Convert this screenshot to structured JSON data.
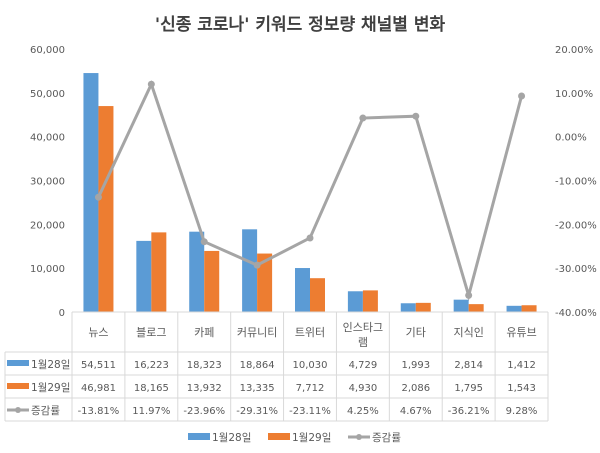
{
  "chart_data": {
    "type": "bar",
    "title": "'신종 코로나' 키워드 정보량 채널별 변화",
    "categories": [
      "뉴스",
      "블로그",
      "카페",
      "커뮤니티",
      "트위터",
      "인스타그램",
      "기타",
      "지식인",
      "유튜브"
    ],
    "series": [
      {
        "name": "1월28일",
        "type": "bar",
        "color": "#5B9BD5",
        "values": [
          54511,
          16223,
          18323,
          18864,
          10030,
          4729,
          1993,
          2814,
          1412
        ],
        "labels": [
          "54,511",
          "16,223",
          "18,323",
          "18,864",
          "10,030",
          "4,729",
          "1,993",
          "2,814",
          "1,412"
        ]
      },
      {
        "name": "1월29일",
        "type": "bar",
        "color": "#ED7D31",
        "values": [
          46981,
          18165,
          13932,
          13335,
          7712,
          4930,
          2086,
          1795,
          1543
        ],
        "labels": [
          "46,981",
          "18,165",
          "13,932",
          "13,335",
          "7,712",
          "4,930",
          "2,086",
          "1,795",
          "1,543"
        ]
      },
      {
        "name": "증감률",
        "type": "line",
        "axis": "right",
        "color": "#A5A5A5",
        "values": [
          -13.81,
          11.97,
          -23.96,
          -29.31,
          -23.11,
          4.25,
          4.67,
          -36.21,
          9.28
        ],
        "labels": [
          "-13.81%",
          "11.97%",
          "-23.96%",
          "-29.31%",
          "-23.11%",
          "4.25%",
          "4.67%",
          "-36.21%",
          "9.28%"
        ]
      }
    ],
    "ylim": [
      0,
      60000
    ],
    "yticks": [
      "0",
      "10,000",
      "20,000",
      "30,000",
      "40,000",
      "50,000",
      "60,000"
    ],
    "y2lim": [
      -40,
      20
    ],
    "y2ticks": [
      "-40.00%",
      "-30.00%",
      "-20.00%",
      "-10.00%",
      "0.00%",
      "10.00%",
      "20.00%"
    ],
    "grid": false,
    "legend": "bottom",
    "data_table": true
  }
}
